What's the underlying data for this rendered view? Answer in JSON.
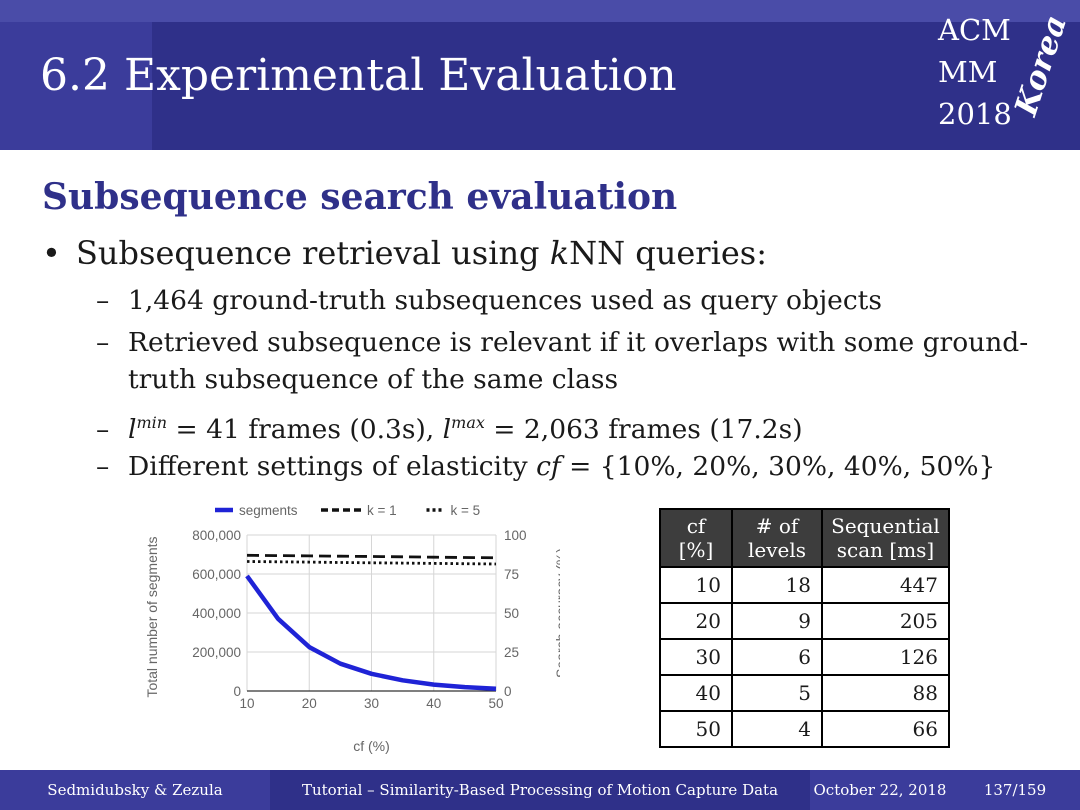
{
  "header": {
    "title": "6.2 Experimental Evaluation",
    "logo": {
      "line1": "ACM",
      "line2": "MM",
      "line3": "2018",
      "script": "Korea"
    }
  },
  "section_title": "Subsequence search evaluation",
  "bullet": {
    "prefix": "Subsequence retrieval using ",
    "italic": "k",
    "suffix": "NN queries:"
  },
  "subbullets": {
    "b1": "1,464 ground-truth subsequences used as query objects",
    "b2_line1": "Retrieved subsequence is relevant if it overlaps with some ground-",
    "b2_line2": "truth subsequence of the same class",
    "b3": {
      "lmin": "l",
      "lmin_sup": "min",
      "mid": " = 41 frames (0.3s), ",
      "lmax": "l",
      "lmax_sup": "max",
      "end": " = 2,063 frames (17.2s)"
    },
    "b4": {
      "prefix": "Different settings of elasticity ",
      "cf": "cf",
      "suffix": " = {10%, 20%, 30%, 40%, 50%}"
    }
  },
  "chart_data": {
    "type": "line",
    "x": [
      10,
      15,
      20,
      25,
      30,
      35,
      40,
      45,
      50
    ],
    "xlabel": "cf (%)",
    "ylabel": "Total number of segments",
    "y2label": "Search accuracy (%)",
    "xlim": [
      10,
      50
    ],
    "ylim": [
      0,
      800000
    ],
    "y2lim": [
      0,
      100
    ],
    "xticks": [
      "10",
      "20",
      "30",
      "40",
      "50"
    ],
    "yticks": [
      "0",
      "200,000",
      "400,000",
      "600,000",
      "800,000"
    ],
    "y2ticks": [
      "0",
      "25",
      "50",
      "75",
      "100"
    ],
    "legend_position": "top",
    "grid": true,
    "series": [
      {
        "name": "segments",
        "axis": "left",
        "style": "solid",
        "color": "#1f23d6",
        "values": [
          590000,
          370000,
          225000,
          140000,
          88000,
          55000,
          33000,
          20000,
          12000
        ]
      },
      {
        "name": "k = 1",
        "axis": "right",
        "style": "dashed",
        "color": "#111111",
        "values": [
          87,
          86.8,
          86.6,
          86.4,
          86.2,
          86,
          85.8,
          85.6,
          85.4
        ]
      },
      {
        "name": "k = 5",
        "axis": "right",
        "style": "dotted",
        "color": "#111111",
        "values": [
          83,
          82.8,
          82.6,
          82.4,
          82.2,
          82,
          81.8,
          81.6,
          81.4
        ]
      }
    ]
  },
  "table": {
    "headers": [
      [
        "cf",
        "[%]"
      ],
      [
        "# of",
        "levels"
      ],
      [
        "Sequential",
        "scan [ms]"
      ]
    ],
    "rows": [
      [
        "10",
        "18",
        "447"
      ],
      [
        "20",
        "9",
        "205"
      ],
      [
        "30",
        "6",
        "126"
      ],
      [
        "40",
        "5",
        "88"
      ],
      [
        "50",
        "4",
        "66"
      ]
    ]
  },
  "footer": {
    "authors": "Sedmidubsky & Zezula",
    "talk": "Tutorial – Similarity-Based Processing of Motion Capture Data",
    "date": "October 22, 2018",
    "page": "137/159"
  },
  "colors": {
    "header": "#3b3c9b",
    "header_dark": "#2f3089",
    "section_title": "#2f3089",
    "segments_line": "#1f23d6"
  }
}
